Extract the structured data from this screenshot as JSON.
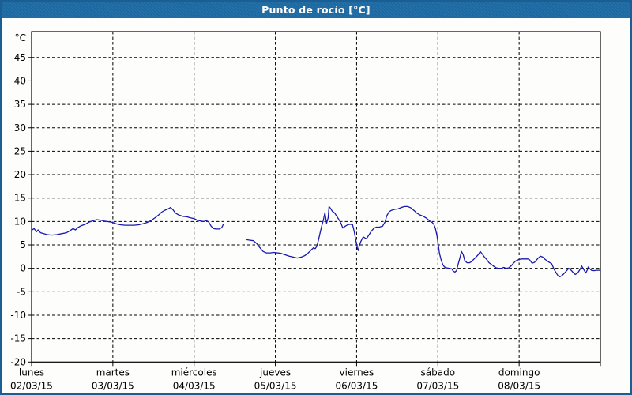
{
  "window": {
    "title": "Punto de rocío [°C]"
  },
  "colors": {
    "titlebar": "#1D6AA4",
    "frame": "#1A5E94",
    "plot_bg": "#FDFEFB",
    "grid": "#000000",
    "line": "#1818AE",
    "text": "#000000"
  },
  "chart_data": {
    "type": "line",
    "title": "Punto de rocío [°C]",
    "ylabel": "°C",
    "xlabel": "",
    "ylim": [
      -20,
      50.5
    ],
    "y_tick_step": 5,
    "y_ticks": [
      45,
      40,
      35,
      30,
      25,
      20,
      15,
      10,
      5,
      0,
      -5,
      -10,
      -15,
      -20
    ],
    "grid": "dashed horizontal at each 5°C and vertical at each day boundary",
    "legend_position": "none",
    "x_days": [
      {
        "name": "lunes",
        "date": "02/03/15"
      },
      {
        "name": "martes",
        "date": "03/03/15"
      },
      {
        "name": "miércoles",
        "date": "04/03/15"
      },
      {
        "name": "jueves",
        "date": "05/03/15"
      },
      {
        "name": "viernes",
        "date": "06/03/15"
      },
      {
        "name": "sábado",
        "date": "07/03/15"
      },
      {
        "name": "domingo",
        "date": "08/03/15"
      }
    ],
    "series": [
      {
        "name": "Punto de rocío",
        "color": "#1818AE",
        "x_unit": "days from 02/03/15 00:00",
        "y_unit": "°C",
        "segments": [
          [
            [
              0,
              8.1
            ],
            [
              0.03,
              8.5
            ],
            [
              0.06,
              7.8
            ],
            [
              0.08,
              8.2
            ],
            [
              0.11,
              7.6
            ],
            [
              0.15,
              7.4
            ],
            [
              0.19,
              7.2
            ],
            [
              0.25,
              7.1
            ],
            [
              0.31,
              7.2
            ],
            [
              0.37,
              7.4
            ],
            [
              0.43,
              7.6
            ],
            [
              0.47,
              8.0
            ],
            [
              0.51,
              8.5
            ],
            [
              0.54,
              8.2
            ],
            [
              0.57,
              8.7
            ],
            [
              0.61,
              9.1
            ],
            [
              0.66,
              9.4
            ],
            [
              0.71,
              9.9
            ],
            [
              0.76,
              10.2
            ],
            [
              0.8,
              10.4
            ],
            [
              0.85,
              10.3
            ],
            [
              0.89,
              10.1
            ],
            [
              0.93,
              10.0
            ],
            [
              0.97,
              9.9
            ],
            [
              1.0,
              9.8
            ],
            [
              1.04,
              9.5
            ],
            [
              1.09,
              9.3
            ],
            [
              1.15,
              9.2
            ],
            [
              1.21,
              9.2
            ],
            [
              1.26,
              9.2
            ],
            [
              1.32,
              9.3
            ],
            [
              1.37,
              9.5
            ],
            [
              1.42,
              9.8
            ],
            [
              1.47,
              10.2
            ],
            [
              1.52,
              10.8
            ],
            [
              1.57,
              11.5
            ],
            [
              1.6,
              12.0
            ],
            [
              1.64,
              12.4
            ],
            [
              1.68,
              12.7
            ],
            [
              1.71,
              13.0
            ],
            [
              1.74,
              12.5
            ],
            [
              1.77,
              11.8
            ],
            [
              1.81,
              11.4
            ],
            [
              1.86,
              11.1
            ],
            [
              1.91,
              11.0
            ],
            [
              1.95,
              10.8
            ],
            [
              2.0,
              10.6
            ],
            [
              2.04,
              10.3
            ],
            [
              2.08,
              10.1
            ],
            [
              2.12,
              10.0
            ],
            [
              2.15,
              10.2
            ],
            [
              2.18,
              9.9
            ],
            [
              2.21,
              9.0
            ],
            [
              2.24,
              8.5
            ],
            [
              2.27,
              8.4
            ],
            [
              2.31,
              8.4
            ],
            [
              2.34,
              8.7
            ],
            [
              2.36,
              9.4
            ]
          ],
          [
            [
              2.65,
              6.1
            ],
            [
              2.69,
              6.0
            ],
            [
              2.73,
              5.9
            ],
            [
              2.77,
              5.3
            ],
            [
              2.81,
              4.4
            ],
            [
              2.85,
              3.6
            ],
            [
              2.89,
              3.3
            ],
            [
              2.94,
              3.3
            ],
            [
              2.98,
              3.4
            ],
            [
              3.03,
              3.3
            ],
            [
              3.07,
              3.2
            ],
            [
              3.12,
              2.9
            ],
            [
              3.17,
              2.6
            ],
            [
              3.22,
              2.4
            ],
            [
              3.27,
              2.2
            ],
            [
              3.32,
              2.4
            ],
            [
              3.36,
              2.7
            ],
            [
              3.4,
              3.2
            ],
            [
              3.44,
              3.9
            ],
            [
              3.47,
              4.4
            ],
            [
              3.49,
              4.2
            ],
            [
              3.51,
              4.7
            ],
            [
              3.53,
              6.0
            ],
            [
              3.55,
              7.5
            ],
            [
              3.57,
              9.0
            ],
            [
              3.59,
              10.3
            ],
            [
              3.61,
              11.9
            ],
            [
              3.63,
              9.6
            ],
            [
              3.65,
              10.8
            ],
            [
              3.66,
              13.2
            ],
            [
              3.68,
              12.8
            ],
            [
              3.7,
              12.2
            ],
            [
              3.73,
              11.8
            ],
            [
              3.76,
              11.0
            ],
            [
              3.79,
              10.2
            ],
            [
              3.81,
              9.5
            ],
            [
              3.83,
              8.6
            ],
            [
              3.86,
              9.0
            ],
            [
              3.89,
              9.3
            ],
            [
              3.92,
              9.4
            ],
            [
              3.95,
              9.3
            ],
            [
              3.97,
              7.9
            ],
            [
              3.99,
              6.0
            ],
            [
              4.01,
              4.2
            ],
            [
              4.02,
              3.8
            ],
            [
              4.03,
              4.6
            ],
            [
              4.05,
              5.7
            ],
            [
              4.08,
              6.7
            ],
            [
              4.1,
              6.5
            ],
            [
              4.12,
              6.3
            ],
            [
              4.15,
              7.1
            ],
            [
              4.18,
              7.9
            ],
            [
              4.21,
              8.5
            ],
            [
              4.24,
              8.8
            ],
            [
              4.28,
              8.8
            ],
            [
              4.32,
              9.0
            ],
            [
              4.35,
              9.9
            ],
            [
              4.37,
              11.2
            ],
            [
              4.4,
              12.1
            ],
            [
              4.43,
              12.4
            ],
            [
              4.47,
              12.6
            ],
            [
              4.51,
              12.7
            ],
            [
              4.55,
              13.0
            ],
            [
              4.59,
              13.2
            ],
            [
              4.63,
              13.2
            ],
            [
              4.67,
              12.9
            ],
            [
              4.71,
              12.3
            ],
            [
              4.74,
              11.8
            ],
            [
              4.78,
              11.4
            ],
            [
              4.82,
              11.1
            ],
            [
              4.86,
              10.7
            ],
            [
              4.9,
              10.1
            ],
            [
              4.93,
              9.8
            ],
            [
              4.95,
              9.4
            ],
            [
              4.97,
              8.5
            ],
            [
              4.99,
              6.8
            ],
            [
              5.0,
              5.6
            ],
            [
              5.02,
              3.2
            ],
            [
              5.04,
              1.8
            ],
            [
              5.06,
              0.8
            ],
            [
              5.08,
              0.3
            ],
            [
              5.11,
              0.1
            ],
            [
              5.14,
              0.0
            ],
            [
              5.17,
              -0.1
            ],
            [
              5.19,
              -0.6
            ],
            [
              5.21,
              -0.8
            ],
            [
              5.23,
              -0.5
            ],
            [
              5.25,
              0.9
            ],
            [
              5.27,
              2.2
            ],
            [
              5.29,
              3.6
            ],
            [
              5.31,
              3.0
            ],
            [
              5.33,
              1.7
            ],
            [
              5.36,
              1.2
            ],
            [
              5.39,
              1.2
            ],
            [
              5.41,
              1.4
            ],
            [
              5.44,
              1.9
            ],
            [
              5.47,
              2.4
            ],
            [
              5.5,
              3.0
            ],
            [
              5.52,
              3.6
            ],
            [
              5.54,
              3.2
            ],
            [
              5.57,
              2.5
            ],
            [
              5.6,
              1.9
            ],
            [
              5.63,
              1.2
            ],
            [
              5.66,
              0.8
            ],
            [
              5.69,
              0.4
            ],
            [
              5.72,
              0.1
            ],
            [
              5.75,
              0.0
            ],
            [
              5.78,
              0.0
            ],
            [
              5.81,
              0.2
            ],
            [
              5.84,
              0.0
            ],
            [
              5.87,
              0.1
            ],
            [
              5.9,
              0.5
            ],
            [
              5.93,
              1.1
            ],
            [
              5.96,
              1.6
            ],
            [
              6.0,
              1.9
            ],
            [
              6.03,
              2.0
            ],
            [
              6.07,
              2.0
            ],
            [
              6.11,
              2.0
            ],
            [
              6.13,
              1.8
            ],
            [
              6.16,
              1.1
            ],
            [
              6.19,
              1.3
            ],
            [
              6.23,
              2.1
            ],
            [
              6.26,
              2.6
            ],
            [
              6.29,
              2.4
            ],
            [
              6.32,
              1.9
            ],
            [
              6.36,
              1.4
            ],
            [
              6.4,
              1.0
            ],
            [
              6.43,
              -0.2
            ],
            [
              6.46,
              -1.1
            ],
            [
              6.48,
              -1.6
            ],
            [
              6.5,
              -1.8
            ],
            [
              6.53,
              -1.5
            ],
            [
              6.56,
              -1.0
            ],
            [
              6.59,
              -0.4
            ],
            [
              6.61,
              0.0
            ],
            [
              6.64,
              -0.4
            ],
            [
              6.67,
              -1.0
            ],
            [
              6.69,
              -1.3
            ],
            [
              6.72,
              -1.0
            ],
            [
              6.75,
              -0.2
            ],
            [
              6.77,
              0.5
            ],
            [
              6.79,
              -0.1
            ],
            [
              6.81,
              -0.7
            ],
            [
              6.82,
              -1.0
            ],
            [
              6.84,
              -0.3
            ],
            [
              6.85,
              0.3
            ],
            [
              6.87,
              -0.1
            ],
            [
              6.89,
              -0.4
            ],
            [
              6.92,
              -0.5
            ],
            [
              6.95,
              -0.4
            ],
            [
              6.98,
              -0.4
            ],
            [
              7.0,
              -0.4
            ]
          ]
        ]
      }
    ]
  }
}
